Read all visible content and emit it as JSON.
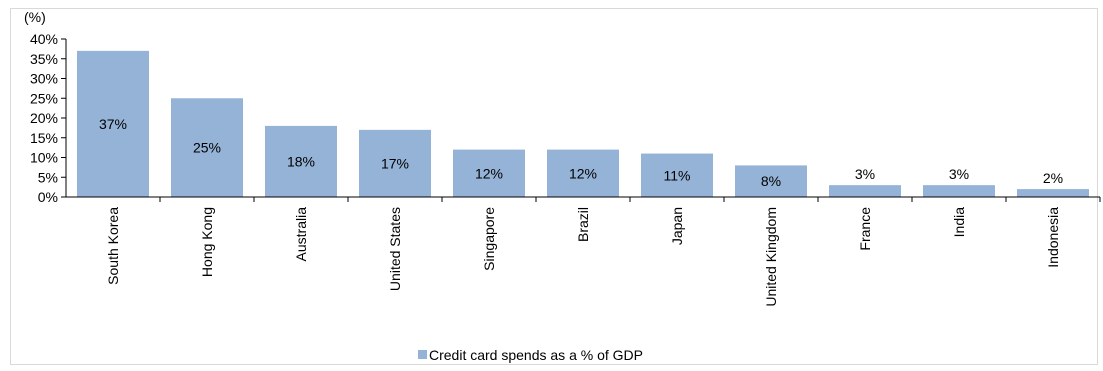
{
  "chart_data": {
    "type": "bar",
    "unit_label": "(%)",
    "categories": [
      "South Korea",
      "Hong Kong",
      "Australia",
      "United States",
      "Singapore",
      "Brazil",
      "Japan",
      "United Kingdom",
      "France",
      "India",
      "Indonesia"
    ],
    "values": [
      37,
      25,
      18,
      17,
      12,
      12,
      11,
      8,
      3,
      3,
      2
    ],
    "value_labels": [
      "37%",
      "25%",
      "18%",
      "17%",
      "12%",
      "12%",
      "11%",
      "8%",
      "3%",
      "3%",
      "2%"
    ],
    "ylim": [
      0,
      40
    ],
    "yticks": [
      "0%",
      "5%",
      "10%",
      "15%",
      "20%",
      "25%",
      "30%",
      "35%",
      "40%"
    ],
    "series": [
      {
        "name": "Credit card spends as a % of GDP",
        "color": "#95b3d7"
      }
    ],
    "legend_position": "bottom",
    "grid": false
  }
}
